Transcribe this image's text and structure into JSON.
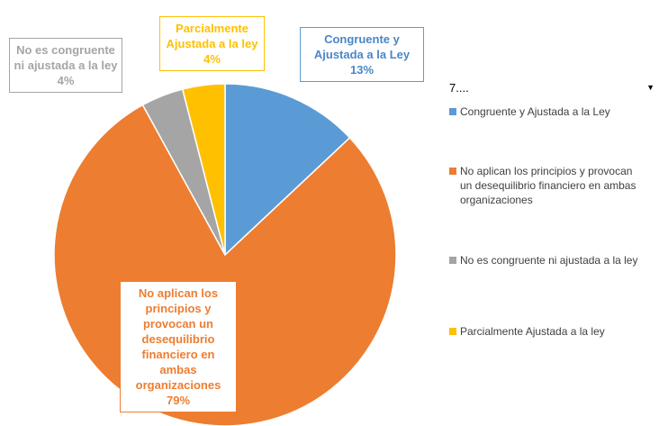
{
  "chart_data": {
    "type": "pie",
    "categories": [
      "Congruente y Ajustada a la Ley",
      "No aplican los principios y provocan un desequilibrio financiero en ambas organizaciones",
      "No es congruente ni ajustada a la ley",
      "Parcialmente Ajustada a la ley"
    ],
    "values": [
      13,
      79,
      4,
      4
    ],
    "value_labels": [
      "13%",
      "79%",
      "4%",
      "4%"
    ],
    "colors": [
      "#5b9bd5",
      "#ed7d31",
      "#a5a5a5",
      "#ffc000"
    ],
    "legend_title": "7....",
    "legend": "right"
  }
}
